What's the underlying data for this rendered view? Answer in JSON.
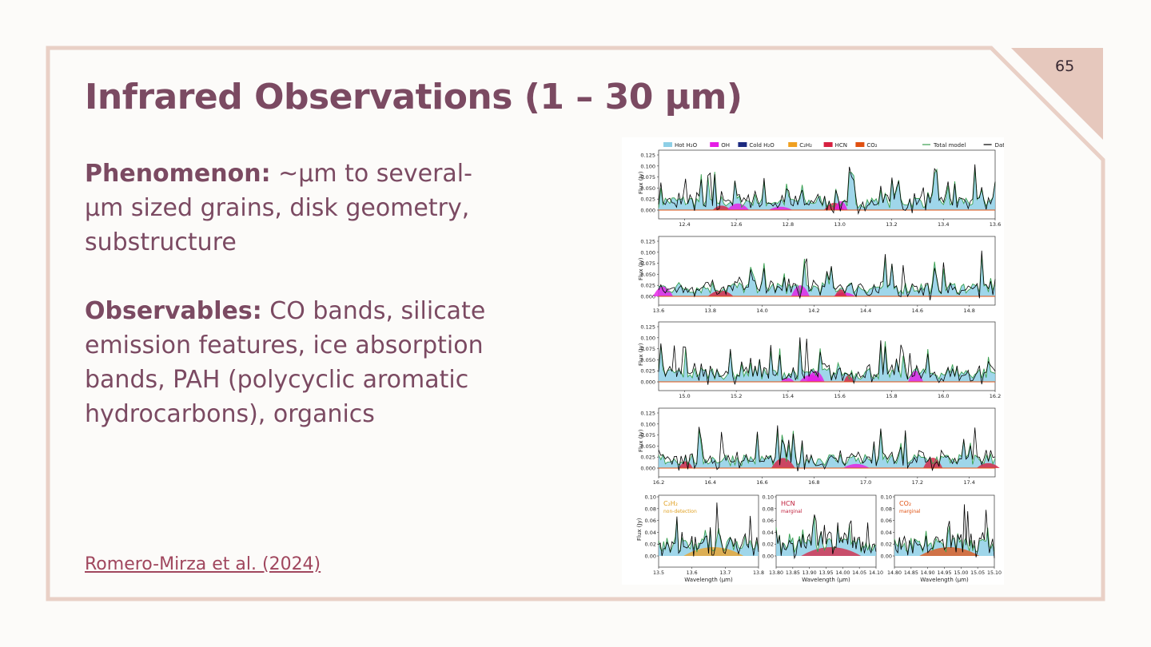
{
  "slide": {
    "page_number": "65",
    "title": "Infrared Observations (1 – 30 μm)",
    "phenomenon": {
      "label": "Phenomenon:",
      "text": " ~μm to several-μm sized grains, disk geometry, substructure"
    },
    "observables": {
      "label": "Observables:",
      "text": " CO bands, silicate emission features, ice absorption bands, PAH (polycyclic aromatic hydrocarbons), organics"
    },
    "citation": "Romero-Mirza et al. (2024)"
  },
  "colors": {
    "frame": "#e9d0c6",
    "corner": "#e6c8bd",
    "title": "#7b4a62",
    "link": "#a0475e"
  },
  "chart_data": {
    "type": "line",
    "legend": [
      {
        "name": "Hot H₂O",
        "color": "#8ecfe6"
      },
      {
        "name": "OH",
        "color": "#e61ce6"
      },
      {
        "name": "Cold H₂O",
        "color": "#1c2a80"
      },
      {
        "name": "C₂H₂",
        "color": "#f0a020"
      },
      {
        "name": "HCN",
        "color": "#d62040"
      },
      {
        "name": "CO₂",
        "color": "#e05010"
      },
      {
        "name": "Total model",
        "color": "#3aa050"
      },
      {
        "name": "Data",
        "color": "#000000"
      }
    ],
    "ylabel": "Flux (Jy)",
    "xlabel": "Wavelength (μm)",
    "panels": [
      {
        "xlim": [
          12.3,
          13.6
        ],
        "xticks": [
          "12.4",
          "12.6",
          "12.8",
          "13.0",
          "13.2",
          "13.4",
          "13.6"
        ],
        "yticks": [
          "0.000",
          "0.025",
          "0.050",
          "0.075",
          "0.100",
          "0.125"
        ]
      },
      {
        "xlim": [
          13.6,
          14.9
        ],
        "xticks": [
          "13.6",
          "13.8",
          "14.0",
          "14.2",
          "14.4",
          "14.6",
          "14.8"
        ],
        "yticks": [
          "0.000",
          "0.025",
          "0.050",
          "0.075",
          "0.100",
          "0.125"
        ]
      },
      {
        "xlim": [
          14.9,
          16.2
        ],
        "xticks": [
          "15.0",
          "15.2",
          "15.4",
          "15.6",
          "15.8",
          "16.0",
          "16.2"
        ],
        "yticks": [
          "0.000",
          "0.025",
          "0.050",
          "0.075",
          "0.100",
          "0.125"
        ]
      },
      {
        "xlim": [
          16.2,
          17.5
        ],
        "xticks": [
          "16.2",
          "16.4",
          "16.6",
          "16.8",
          "17.0",
          "17.2",
          "17.4"
        ],
        "yticks": [
          "0.000",
          "0.025",
          "0.050",
          "0.075",
          "0.100",
          "0.125"
        ]
      }
    ],
    "zoom_panels": [
      {
        "label": "C₂H₂",
        "sublabel": "non-detection",
        "label_color": "#e0a020",
        "xticks": [
          "13.5",
          "13.6",
          "13.7",
          "13.8"
        ],
        "yticks": [
          "0.00",
          "0.02",
          "0.04",
          "0.06",
          "0.08",
          "0.10"
        ]
      },
      {
        "label": "HCN",
        "sublabel": "marginal",
        "label_color": "#c0203c",
        "xticks": [
          "13.80",
          "13.85",
          "13.90",
          "13.95",
          "14.00",
          "14.05",
          "14.10"
        ],
        "yticks": [
          "0.00",
          "0.02",
          "0.04",
          "0.06",
          "0.08",
          "0.10"
        ]
      },
      {
        "label": "CO₂",
        "sublabel": "marginal",
        "label_color": "#e05010",
        "xticks": [
          "14.80",
          "14.85",
          "14.90",
          "14.95",
          "15.00",
          "15.05",
          "15.10"
        ],
        "yticks": [
          "0.00",
          "0.02",
          "0.04",
          "0.06",
          "0.08",
          "0.10"
        ]
      }
    ]
  }
}
